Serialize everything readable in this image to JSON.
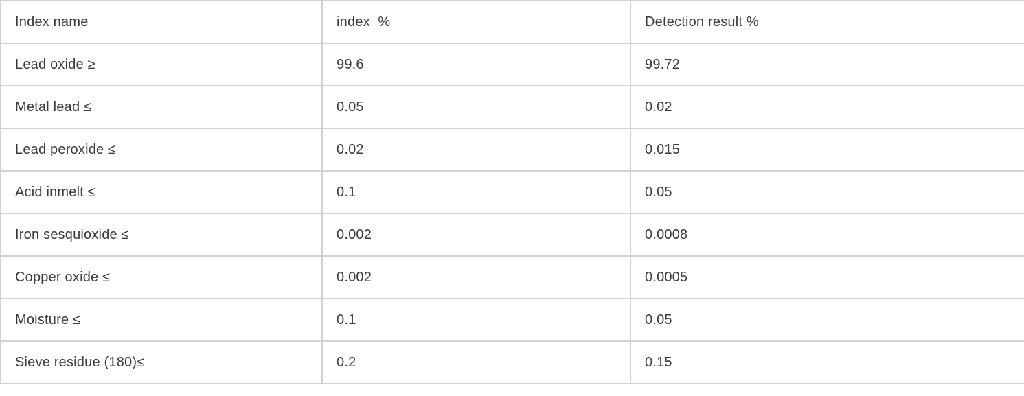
{
  "colors": {
    "border": "#d2d2d2",
    "text": "#3b3b3b",
    "background": "#ffffff"
  },
  "table": {
    "columns": [
      {
        "label": "Index name"
      },
      {
        "label": "index  %"
      },
      {
        "label": "Detection result %"
      }
    ],
    "rows": [
      {
        "name": "Lead oxide ≥",
        "index": "99.6",
        "result": "99.72"
      },
      {
        "name": "Metal lead ≤",
        "index": "0.05",
        "result": "0.02"
      },
      {
        "name": "Lead peroxide ≤",
        "index": "0.02",
        "result": "0.015"
      },
      {
        "name": "Acid inmelt ≤",
        "index": "0.1",
        "result": "0.05"
      },
      {
        "name": "Iron sesquioxide ≤",
        "index": "0.002",
        "result": "0.0008"
      },
      {
        "name": "Copper oxide ≤",
        "index": "0.002",
        "result": "0.0005"
      },
      {
        "name": "Moisture ≤",
        "index": "0.1",
        "result": "0.05"
      },
      {
        "name": "Sieve residue (180)≤",
        "index": "0.2",
        "result": "0.15"
      }
    ]
  }
}
